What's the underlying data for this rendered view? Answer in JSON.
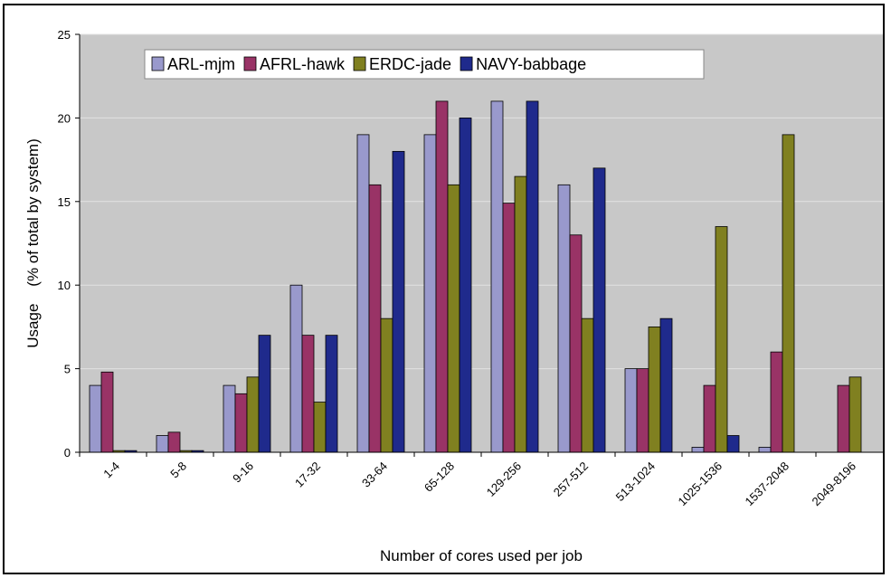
{
  "chart_data": {
    "type": "bar",
    "xlabel": "Number of cores used per job",
    "ylabel": "Usage    (% of total by system)",
    "ylim": [
      0,
      25
    ],
    "yticks": [
      0,
      5,
      10,
      15,
      20,
      25
    ],
    "grid": true,
    "legend_position": "top",
    "categories": [
      "1-4",
      "5-8",
      "9-16",
      "17-32",
      "33-64",
      "65-128",
      "129-256",
      "257-512",
      "513-1024",
      "1025-1536",
      "1537-2048",
      "2049-8196"
    ],
    "series": [
      {
        "name": "ARL-mjm",
        "color": "#9999cc",
        "values": [
          4,
          1,
          4,
          10,
          19,
          19,
          21,
          16,
          5,
          0.3,
          0.3,
          0
        ]
      },
      {
        "name": "AFRL-hawk",
        "color": "#993366",
        "values": [
          4.8,
          1.2,
          3.5,
          7,
          16,
          21,
          14.9,
          13,
          5,
          4,
          6,
          4
        ]
      },
      {
        "name": "ERDC-jade",
        "color": "#808020",
        "values": [
          0.1,
          0.1,
          4.5,
          3,
          8,
          16,
          16.5,
          8,
          7.5,
          13.5,
          19,
          4.5
        ]
      },
      {
        "name": "NAVY-babbage",
        "color": "#1f2a8c",
        "values": [
          0.1,
          0.1,
          7,
          7,
          18,
          20,
          21,
          17,
          8,
          1,
          0,
          0
        ]
      }
    ]
  },
  "colors": {
    "plot_background": "#c8c8c8",
    "gridline": "#e2e2e2",
    "frame": "#000000"
  }
}
